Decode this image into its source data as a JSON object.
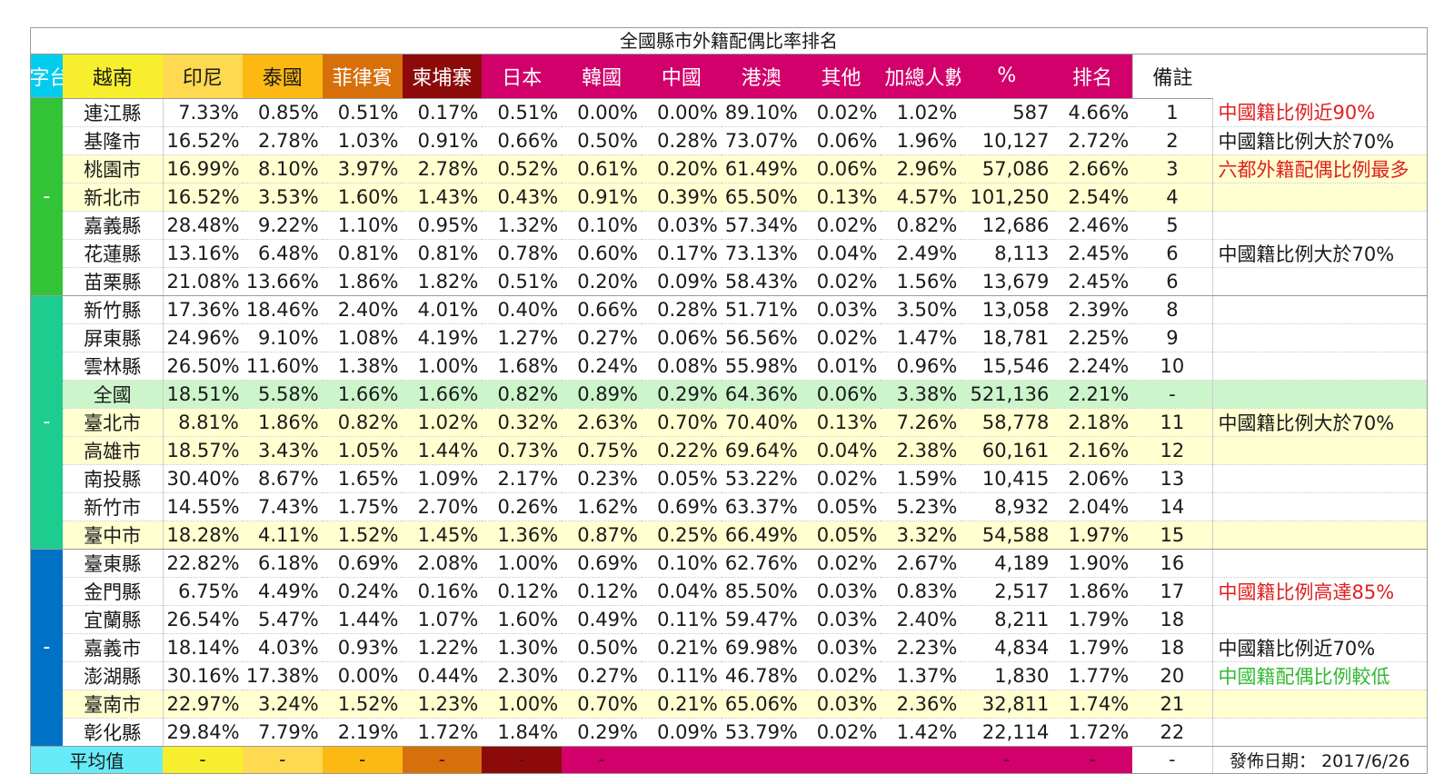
{
  "title": "全國縣市外籍配偶比率排名",
  "brand": "數字台灣",
  "headers": [
    "越南",
    "印尼",
    "泰國",
    "菲律賓",
    "柬埔寨",
    "日本",
    "韓國",
    "中國",
    "港澳",
    "其他",
    "加總人數",
    "%",
    "排名",
    "備註"
  ],
  "header_colors": [
    "#f7ef2e",
    "#ffd94f",
    "#fdb913",
    "#d7700b",
    "#8c0a0a",
    "#d1006b",
    "#d1006b",
    "#d1006b",
    "#d1006b",
    "#d1006b",
    "#d1006b",
    "#d1006b",
    "#d1006b",
    "#ffffff"
  ],
  "brand_color": "#00ccee",
  "groups": [
    {
      "label": "-",
      "color": "#33c337",
      "rows": [
        {
          "name": "連江縣",
          "vals": [
            "7.33%",
            "0.85%",
            "0.51%",
            "0.17%",
            "0.51%",
            "0.00%",
            "0.00%",
            "89.10%",
            "0.02%",
            "1.02%",
            "587",
            "4.66%",
            "1"
          ],
          "note": "中國籍比例近90%",
          "note_color": "#e02020",
          "hl": ""
        },
        {
          "name": "基隆市",
          "vals": [
            "16.52%",
            "2.78%",
            "1.03%",
            "0.91%",
            "0.66%",
            "0.50%",
            "0.28%",
            "73.07%",
            "0.06%",
            "1.96%",
            "10,127",
            "2.72%",
            "2"
          ],
          "note": "中國籍比例大於70%",
          "note_color": "#1a1a1a",
          "hl": ""
        },
        {
          "name": "桃園市",
          "vals": [
            "16.99%",
            "8.10%",
            "3.97%",
            "2.78%",
            "0.52%",
            "0.61%",
            "0.20%",
            "61.49%",
            "0.06%",
            "2.96%",
            "57,086",
            "2.66%",
            "3"
          ],
          "note": "六都外籍配偶比例最多",
          "note_color": "#e02020",
          "hl": "#ffffd0"
        },
        {
          "name": "新北市",
          "vals": [
            "16.52%",
            "3.53%",
            "1.60%",
            "1.43%",
            "0.43%",
            "0.91%",
            "0.39%",
            "65.50%",
            "0.13%",
            "4.57%",
            "101,250",
            "2.54%",
            "4"
          ],
          "note": "",
          "note_color": "#1a1a1a",
          "hl": "#ffffd0"
        },
        {
          "name": "嘉義縣",
          "vals": [
            "28.48%",
            "9.22%",
            "1.10%",
            "0.95%",
            "1.32%",
            "0.10%",
            "0.03%",
            "57.34%",
            "0.02%",
            "0.82%",
            "12,686",
            "2.46%",
            "5"
          ],
          "note": "",
          "note_color": "#1a1a1a",
          "hl": ""
        },
        {
          "name": "花蓮縣",
          "vals": [
            "13.16%",
            "6.48%",
            "0.81%",
            "0.81%",
            "0.78%",
            "0.60%",
            "0.17%",
            "73.13%",
            "0.04%",
            "2.49%",
            "8,113",
            "2.45%",
            "6"
          ],
          "note": "中國籍比例大於70%",
          "note_color": "#1a1a1a",
          "hl": ""
        },
        {
          "name": "苗栗縣",
          "vals": [
            "21.08%",
            "13.66%",
            "1.86%",
            "1.82%",
            "0.51%",
            "0.20%",
            "0.09%",
            "58.43%",
            "0.02%",
            "1.56%",
            "13,679",
            "2.45%",
            "6"
          ],
          "note": "",
          "note_color": "#1a1a1a",
          "hl": ""
        }
      ]
    },
    {
      "label": "-",
      "color": "#1dcc8f",
      "rows": [
        {
          "name": "新竹縣",
          "vals": [
            "17.36%",
            "18.46%",
            "2.40%",
            "4.01%",
            "0.40%",
            "0.66%",
            "0.28%",
            "51.71%",
            "0.03%",
            "3.50%",
            "13,058",
            "2.39%",
            "8"
          ],
          "note": "",
          "note_color": "#1a1a1a",
          "hl": ""
        },
        {
          "name": "屏東縣",
          "vals": [
            "24.96%",
            "9.10%",
            "1.08%",
            "4.19%",
            "1.27%",
            "0.27%",
            "0.06%",
            "56.56%",
            "0.02%",
            "1.47%",
            "18,781",
            "2.25%",
            "9"
          ],
          "note": "",
          "note_color": "#1a1a1a",
          "hl": ""
        },
        {
          "name": "雲林縣",
          "vals": [
            "26.50%",
            "11.60%",
            "1.38%",
            "1.00%",
            "1.68%",
            "0.24%",
            "0.08%",
            "55.98%",
            "0.01%",
            "0.96%",
            "15,546",
            "2.24%",
            "10"
          ],
          "note": "",
          "note_color": "#1a1a1a",
          "hl": ""
        },
        {
          "name": "全國",
          "vals": [
            "18.51%",
            "5.58%",
            "1.66%",
            "1.66%",
            "0.82%",
            "0.89%",
            "0.29%",
            "64.36%",
            "0.06%",
            "3.38%",
            "521,136",
            "2.21%",
            "-"
          ],
          "note": "",
          "note_color": "#1a1a1a",
          "hl": "#ccf5cc"
        },
        {
          "name": "臺北市",
          "vals": [
            "8.81%",
            "1.86%",
            "0.82%",
            "1.02%",
            "0.32%",
            "2.63%",
            "0.70%",
            "70.40%",
            "0.13%",
            "7.26%",
            "58,778",
            "2.18%",
            "11"
          ],
          "note": "中國籍比例大於70%",
          "note_color": "#1a1a1a",
          "hl": "#ffffd0"
        },
        {
          "name": "高雄市",
          "vals": [
            "18.57%",
            "3.43%",
            "1.05%",
            "1.44%",
            "0.73%",
            "0.75%",
            "0.22%",
            "69.64%",
            "0.04%",
            "2.38%",
            "60,161",
            "2.16%",
            "12"
          ],
          "note": "",
          "note_color": "#1a1a1a",
          "hl": "#ffffd0"
        },
        {
          "name": "南投縣",
          "vals": [
            "30.40%",
            "8.67%",
            "1.65%",
            "1.09%",
            "2.17%",
            "0.23%",
            "0.05%",
            "53.22%",
            "0.02%",
            "1.59%",
            "10,415",
            "2.06%",
            "13"
          ],
          "note": "",
          "note_color": "#1a1a1a",
          "hl": ""
        },
        {
          "name": "新竹市",
          "vals": [
            "14.55%",
            "7.43%",
            "1.75%",
            "2.70%",
            "0.26%",
            "1.62%",
            "0.69%",
            "63.37%",
            "0.05%",
            "5.23%",
            "8,932",
            "2.04%",
            "14"
          ],
          "note": "",
          "note_color": "#1a1a1a",
          "hl": ""
        },
        {
          "name": "臺中市",
          "vals": [
            "18.28%",
            "4.11%",
            "1.52%",
            "1.45%",
            "1.36%",
            "0.87%",
            "0.25%",
            "66.49%",
            "0.05%",
            "3.32%",
            "54,588",
            "1.97%",
            "15"
          ],
          "note": "",
          "note_color": "#1a1a1a",
          "hl": "#ffffd0"
        }
      ]
    },
    {
      "label": "-",
      "color": "#0072c6",
      "rows": [
        {
          "name": "臺東縣",
          "vals": [
            "22.82%",
            "6.18%",
            "0.69%",
            "2.08%",
            "1.00%",
            "0.69%",
            "0.10%",
            "62.76%",
            "0.02%",
            "2.67%",
            "4,189",
            "1.90%",
            "16"
          ],
          "note": "",
          "note_color": "#1a1a1a",
          "hl": ""
        },
        {
          "name": "金門縣",
          "vals": [
            "6.75%",
            "4.49%",
            "0.24%",
            "0.16%",
            "0.12%",
            "0.12%",
            "0.04%",
            "85.50%",
            "0.03%",
            "0.83%",
            "2,517",
            "1.86%",
            "17"
          ],
          "note": "中國籍比例高達85%",
          "note_color": "#e02020",
          "hl": ""
        },
        {
          "name": "宜蘭縣",
          "vals": [
            "26.54%",
            "5.47%",
            "1.44%",
            "1.07%",
            "1.60%",
            "0.49%",
            "0.11%",
            "59.47%",
            "0.03%",
            "2.40%",
            "8,211",
            "1.79%",
            "18"
          ],
          "note": "",
          "note_color": "#1a1a1a",
          "hl": ""
        },
        {
          "name": "嘉義市",
          "vals": [
            "18.14%",
            "4.03%",
            "0.93%",
            "1.22%",
            "1.30%",
            "0.50%",
            "0.21%",
            "69.98%",
            "0.03%",
            "2.23%",
            "4,834",
            "1.79%",
            "18"
          ],
          "note": "中國籍比例近70%",
          "note_color": "#1a1a1a",
          "hl": ""
        },
        {
          "name": "澎湖縣",
          "vals": [
            "30.16%",
            "17.38%",
            "0.00%",
            "0.44%",
            "2.30%",
            "0.27%",
            "0.11%",
            "46.78%",
            "0.02%",
            "1.37%",
            "1,830",
            "1.77%",
            "20"
          ],
          "note": "中國籍配偶比例較低",
          "note_color": "#33b833",
          "hl": ""
        },
        {
          "name": "臺南市",
          "vals": [
            "22.97%",
            "3.24%",
            "1.52%",
            "1.23%",
            "1.00%",
            "0.70%",
            "0.21%",
            "65.06%",
            "0.03%",
            "2.36%",
            "32,811",
            "1.74%",
            "21"
          ],
          "note": "",
          "note_color": "#1a1a1a",
          "hl": "#ffffd0"
        },
        {
          "name": "彰化縣",
          "vals": [
            "29.84%",
            "7.79%",
            "2.19%",
            "1.72%",
            "1.84%",
            "0.29%",
            "0.09%",
            "53.79%",
            "0.02%",
            "1.42%",
            "22,114",
            "1.72%",
            "22"
          ],
          "note": "",
          "note_color": "#1a1a1a",
          "hl": ""
        }
      ]
    }
  ],
  "footer": {
    "label": "平均值",
    "label_color": "#66ecf8",
    "cells": [
      "-",
      "-",
      "-",
      "-",
      "-",
      "-",
      "",
      "",
      "",
      "",
      "-",
      "-",
      "-"
    ],
    "note": "發佈日期：  2017/6/26"
  }
}
